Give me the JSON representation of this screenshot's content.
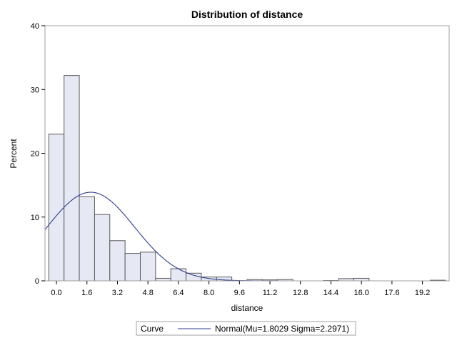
{
  "chart_data": {
    "type": "bar",
    "title": "Distribution of distance",
    "xlabel": "distance",
    "ylabel": "Percent",
    "ylim": [
      0,
      40
    ],
    "xlim": [
      -0.6,
      20.6
    ],
    "yticks": [
      "0",
      "10",
      "20",
      "30",
      "40"
    ],
    "xticks": [
      "0.0",
      "1.6",
      "3.2",
      "4.8",
      "6.4",
      "8.0",
      "9.6",
      "11.2",
      "12.8",
      "14.4",
      "16.0",
      "17.6",
      "19.2"
    ],
    "bin_width": 0.8,
    "bin_centers": [
      0.0,
      0.8,
      1.6,
      2.4,
      3.2,
      4.0,
      4.8,
      5.6,
      6.4,
      7.2,
      8.0,
      8.8,
      9.6,
      10.4,
      11.2,
      12.0,
      12.8,
      13.6,
      14.4,
      15.2,
      16.0,
      16.8,
      17.6,
      18.4,
      19.2,
      20.0
    ],
    "values": [
      23.0,
      32.2,
      13.2,
      10.4,
      6.3,
      4.3,
      4.5,
      0.4,
      1.9,
      1.2,
      0.6,
      0.6,
      0.0,
      0.2,
      0.15,
      0.2,
      0.0,
      0.0,
      0.05,
      0.35,
      0.4,
      0.0,
      0.0,
      0.0,
      0.0,
      0.1
    ],
    "curve": {
      "mu": 1.8029,
      "sigma": 2.2971
    },
    "legend": {
      "title": "Curve",
      "entry": "Normal(Mu=1.8029 Sigma=2.2971)",
      "position": "bottom"
    },
    "colors": {
      "bar_fill": "#e6e9f3",
      "bar_stroke": "#5a5a5a",
      "curve": "#2e3b8f",
      "frame": "#a0a0a0"
    },
    "grid": false
  }
}
